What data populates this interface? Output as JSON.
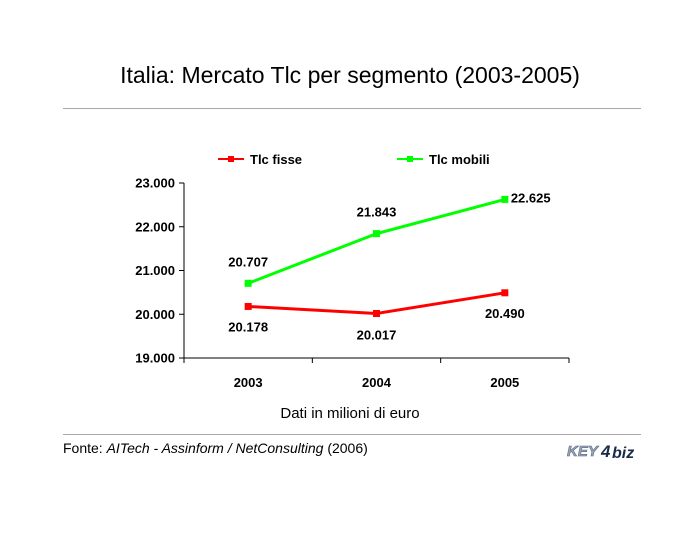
{
  "title": "Italia: Mercato Tlc per segmento (2003-2005)",
  "subtitle": "Dati in milioni di euro",
  "source": {
    "prefix": "Fonte: ",
    "org": "AITech - Assinform / NetConsulting",
    "year": " (2006)"
  },
  "logo": {
    "part1": "KEY",
    "part2": "4",
    "part3": "biz"
  },
  "chart_data": {
    "type": "line",
    "categories": [
      "2003",
      "2004",
      "2005"
    ],
    "series": [
      {
        "name": "Tlc fisse",
        "values": [
          20178,
          20017,
          20490
        ],
        "labels": [
          "20.178",
          "20.017",
          "20.490"
        ],
        "color": "#ff0000"
      },
      {
        "name": "Tlc mobili",
        "values": [
          20707,
          21843,
          22625
        ],
        "labels": [
          "20.707",
          "21.843",
          "22.625"
        ],
        "color": "#00ff00"
      }
    ],
    "yticks": [
      "19.000",
      "20.000",
      "21.000",
      "22.000",
      "23.000"
    ],
    "ylim": [
      19000,
      23000
    ],
    "grid": false,
    "legend": "top"
  }
}
